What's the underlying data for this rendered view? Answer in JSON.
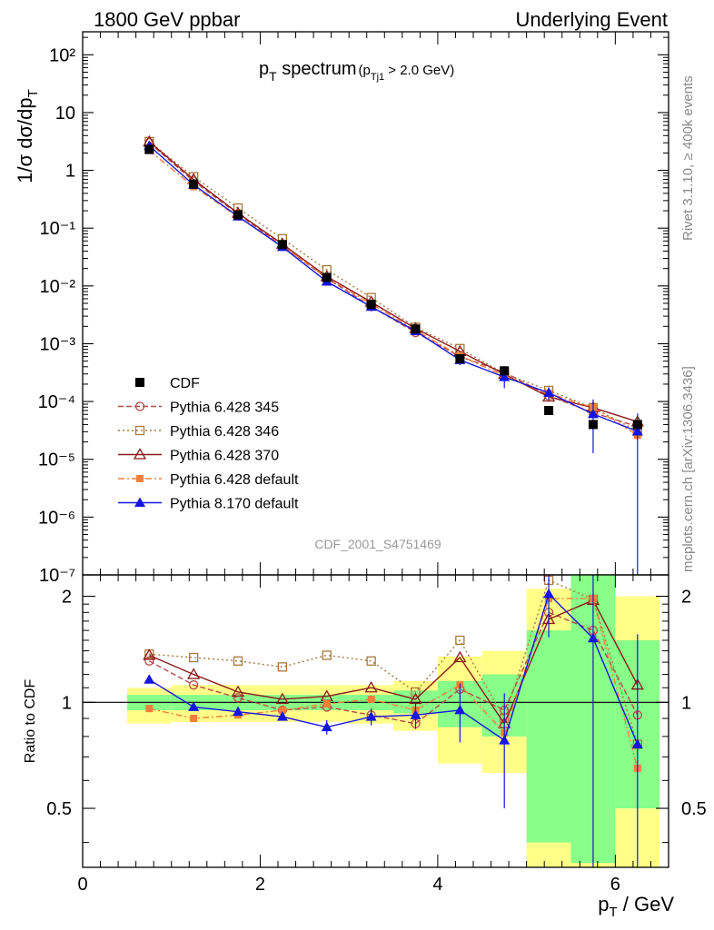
{
  "header": {
    "left": "1800 GeV ppbar",
    "right": "Underlying Event"
  },
  "side_labels": {
    "rivet": "Rivet 3.1.10, ≥ 400k events",
    "mcplots": "mcplots.cern.ch [arXiv:1306.3436]"
  },
  "watermark": "CDF_2001_S4751469",
  "plot_title": {
    "main": "p",
    "main_sub": "T",
    "main_rest": " spectrum",
    "cut_open": "(p",
    "cut_sub": "Tj1",
    "cut_rest": " > 2.0 GeV)"
  },
  "axes": {
    "ylabel_main": "1/σ dσ/dp",
    "ylabel_main_sub": "T",
    "ylabel_ratio": "Ratio to CDF",
    "xlabel_main": "p",
    "xlabel_sub": "T",
    "xlabel_rest": " / GeV"
  },
  "colors": {
    "data": "#000000",
    "p345": "#b84a4a",
    "p346": "#a8783a",
    "p370": "#8b1a1a",
    "p6def": "#f07f3a",
    "p8def": "#1515e0",
    "band_outer": "#ffff88",
    "band_inner": "#88ff88"
  },
  "chart_data": {
    "type": "line",
    "title": "pT spectrum (pTj1 > 2.0 GeV)",
    "xlabel": "pT / GeV",
    "ylabel": "1/σ dσ/dpT",
    "xlim": [
      0,
      6.6
    ],
    "ylim": [
      1e-07,
      250
    ],
    "ylog": true,
    "legend_position": "middle-left",
    "x_ticks": [
      "0",
      "2",
      "4",
      "6"
    ],
    "y_ticks": [
      "10⁻⁷",
      "10⁻⁶",
      "10⁻⁵",
      "10⁻⁴",
      "10⁻³",
      "10⁻²",
      "10⁻¹",
      "1",
      "10",
      "10²"
    ],
    "x": [
      0.75,
      1.25,
      1.75,
      2.25,
      2.75,
      3.25,
      3.75,
      4.25,
      4.75,
      5.25,
      5.75,
      6.25
    ],
    "data": {
      "name": "CDF",
      "y": [
        2.3,
        0.58,
        0.17,
        0.052,
        0.014,
        0.0048,
        0.0018,
        0.00055,
        0.00034,
        7e-05,
        4e-05,
        4e-05
      ],
      "ratio_band_inner": [
        [
          0.95,
          1.05
        ],
        [
          0.95,
          1.05
        ],
        [
          0.95,
          1.05
        ],
        [
          0.95,
          1.05
        ],
        [
          0.95,
          1.05
        ],
        [
          0.95,
          1.05
        ],
        [
          0.93,
          1.08
        ],
        [
          0.85,
          1.15
        ],
        [
          0.8,
          1.2
        ],
        [
          0.4,
          1.6
        ],
        [
          0.35,
          2.6
        ],
        [
          0.5,
          1.5
        ]
      ],
      "ratio_band_outer": [
        [
          0.87,
          1.1
        ],
        [
          0.88,
          1.12
        ],
        [
          0.88,
          1.12
        ],
        [
          0.88,
          1.12
        ],
        [
          0.88,
          1.12
        ],
        [
          0.87,
          1.12
        ],
        [
          0.83,
          1.15
        ],
        [
          0.67,
          1.35
        ],
        [
          0.63,
          1.4
        ],
        [
          0.34,
          2.1
        ],
        [
          0.34,
          2.6
        ],
        [
          0.34,
          2.0
        ]
      ]
    },
    "series": [
      {
        "name": "Pythia 6.428 345",
        "color_key": "p345",
        "marker": "open-circle",
        "line": "dashed",
        "ratio": [
          1.31,
          1.12,
          1.03,
          0.95,
          0.97,
          0.92,
          0.87,
          1.09,
          0.95,
          1.8,
          1.6,
          0.92
        ]
      },
      {
        "name": "Pythia 6.428 346",
        "color_key": "p346",
        "marker": "open-square",
        "line": "dotted",
        "ratio": [
          1.37,
          1.34,
          1.31,
          1.26,
          1.36,
          1.31,
          1.07,
          1.5,
          0.9,
          2.22,
          1.96,
          0.76
        ]
      },
      {
        "name": "Pythia 6.428 370",
        "color_key": "p370",
        "marker": "open-triangle",
        "line": "solid",
        "ratio": [
          1.36,
          1.2,
          1.07,
          1.02,
          1.04,
          1.1,
          1.02,
          1.34,
          0.87,
          1.72,
          1.95,
          1.12
        ]
      },
      {
        "name": "Pythia 6.428 default",
        "color_key": "p6def",
        "marker": "filled-square",
        "line": "dashdot",
        "ratio": [
          0.96,
          0.9,
          0.92,
          0.95,
          0.99,
          1.02,
          0.95,
          1.12,
          0.82,
          1.97,
          1.97,
          0.65
        ]
      },
      {
        "name": "Pythia 8.170 default",
        "color_key": "p8def",
        "marker": "filled-triangle",
        "line": "solid",
        "ratio": [
          1.16,
          0.97,
          0.94,
          0.91,
          0.85,
          0.91,
          0.92,
          0.95,
          0.78,
          2.03,
          1.52,
          0.76
        ],
        "ratio_err": [
          0.02,
          0.02,
          0.02,
          0.02,
          0.04,
          0.05,
          0.08,
          0.18,
          0.28,
          0.5,
          1.2,
          0.8
        ]
      }
    ],
    "ratio_panel": {
      "ylabel": "Ratio to CDF",
      "ylim": [
        0.34,
        2.3
      ],
      "ylog": true,
      "y_ticks": [
        "0.5",
        "1",
        "2"
      ]
    }
  }
}
